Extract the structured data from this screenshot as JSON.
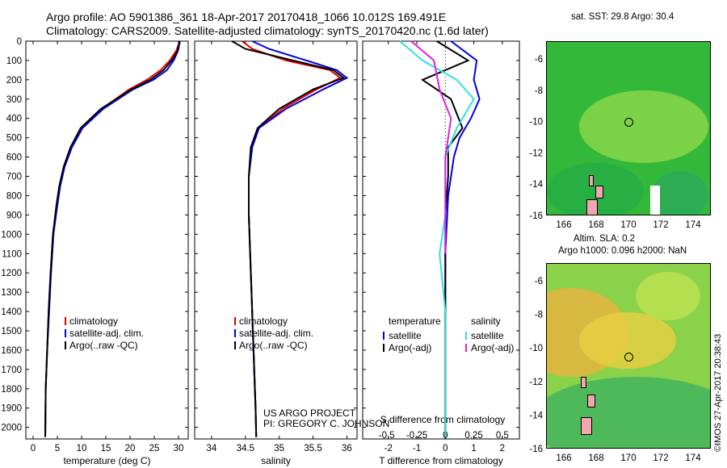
{
  "header": {
    "line1": "Argo profile: AO 5901386_361 18-Apr-2017 20170418_1066 10.012S 169.491E",
    "line2": "Climatology: CARS2009. Satellite-adjusted climatology: synTS_20170420.nc (1.6d later)"
  },
  "chart_data": [
    {
      "type": "line",
      "title": "",
      "xlabel": "temperature (deg C)",
      "ylabel": "",
      "xlim": [
        -1.5,
        32
      ],
      "ylim": [
        2060,
        0
      ],
      "xticks": [
        "0",
        "5",
        "10",
        "15",
        "20",
        "25",
        "30"
      ],
      "yticks": [
        "0",
        "100",
        "200",
        "300",
        "400",
        "500",
        "600",
        "700",
        "800",
        "900",
        "1000",
        "1100",
        "1200",
        "1300",
        "1400",
        "1500",
        "1600",
        "1700",
        "1800",
        "1900",
        "2000"
      ],
      "legend": [
        "climatology",
        "satellite-adj. clim.",
        "Argo(..raw -QC)"
      ],
      "series": [
        {
          "name": "climatology",
          "color": "#e00000",
          "x": [
            30.3,
            29.5,
            28.2,
            26.3,
            23.5,
            19.8,
            14.2,
            10.0,
            7.9,
            6.4,
            5.5,
            4.9,
            4.1,
            3.6,
            3.2,
            2.9,
            2.6,
            2.5
          ],
          "depth": [
            0,
            50,
            100,
            150,
            200,
            250,
            350,
            450,
            550,
            650,
            750,
            850,
            1000,
            1200,
            1400,
            1600,
            1800,
            2050
          ]
        },
        {
          "name": "satellite-adj. clim.",
          "color": "#0000e0",
          "x": [
            30.3,
            29.9,
            29.0,
            27.6,
            24.8,
            20.6,
            14.5,
            10.2,
            8.0,
            6.5,
            5.6,
            5.0,
            4.2,
            3.7,
            3.3,
            2.9,
            2.6,
            2.5
          ],
          "depth": [
            0,
            50,
            100,
            150,
            200,
            250,
            350,
            450,
            550,
            650,
            750,
            850,
            1000,
            1200,
            1400,
            1600,
            1800,
            2050
          ]
        },
        {
          "name": "Argo(..raw -QC)",
          "color": "#000000",
          "x": [
            30.2,
            29.8,
            28.6,
            26.9,
            24.2,
            20.3,
            14.0,
            9.8,
            7.7,
            6.3,
            5.4,
            4.8,
            4.1,
            3.6,
            3.2,
            2.9,
            2.6,
            2.5
          ],
          "depth": [
            0,
            50,
            100,
            150,
            200,
            250,
            350,
            450,
            550,
            650,
            750,
            850,
            1000,
            1200,
            1400,
            1600,
            1800,
            2050
          ]
        }
      ]
    },
    {
      "type": "line",
      "title": "",
      "xlabel": "salinity",
      "ylabel": "",
      "xlim": [
        33.75,
        36.15
      ],
      "ylim": [
        2060,
        0
      ],
      "xticks": [
        "34",
        "34.5",
        "35",
        "35.5",
        "36"
      ],
      "legend": [
        "climatology",
        "satellite-adj. clim.",
        "Argo(..raw -QC)"
      ],
      "annotation": [
        "US ARGO PROJECT",
        "PI: GREGORY C. JOHNSON"
      ],
      "series": [
        {
          "name": "climatology",
          "color": "#e00000",
          "x": [
            34.45,
            34.6,
            35.1,
            35.75,
            35.9,
            35.55,
            35.05,
            34.7,
            34.6,
            34.55,
            34.55,
            34.57,
            34.6,
            34.63,
            34.65,
            34.66
          ],
          "depth": [
            0,
            40,
            100,
            150,
            190,
            250,
            350,
            450,
            550,
            700,
            900,
            1100,
            1400,
            1700,
            1900,
            2050
          ]
        },
        {
          "name": "satellite-adj. clim.",
          "color": "#0000e0",
          "x": [
            34.6,
            34.85,
            35.4,
            35.85,
            36.0,
            35.65,
            35.1,
            34.7,
            34.6,
            34.55,
            34.55,
            34.57,
            34.6,
            34.63,
            34.65,
            34.66
          ],
          "depth": [
            0,
            40,
            100,
            150,
            190,
            250,
            350,
            450,
            550,
            700,
            900,
            1100,
            1400,
            1700,
            1900,
            2050
          ]
        },
        {
          "name": "Argo(..raw -QC)",
          "color": "#000000",
          "x": [
            34.3,
            34.5,
            35.2,
            35.8,
            35.95,
            35.5,
            35.0,
            34.68,
            34.58,
            34.55,
            34.55,
            34.57,
            34.6,
            34.63,
            34.65,
            34.66
          ],
          "depth": [
            0,
            40,
            100,
            150,
            190,
            250,
            350,
            450,
            550,
            700,
            900,
            1100,
            1400,
            1700,
            1900,
            2050
          ]
        }
      ]
    },
    {
      "type": "line",
      "title": "",
      "xlabel": "T difference from climatology",
      "xlabel_top": "S difference from climatology",
      "ylabel": "",
      "xlim": [
        -2.9,
        2.6
      ],
      "ylim": [
        2060,
        0
      ],
      "xticks_T": [
        "-2",
        "-1",
        "0",
        "1",
        "2"
      ],
      "xticks_S": [
        "-0.5",
        "-0.25",
        "0",
        "0.25",
        "0.5"
      ],
      "legend": {
        "temperature_heading": "temperature",
        "salinity_heading": "salinity",
        "items": [
          "satellite",
          "Argo(-adj)",
          "satellite",
          "Argo(-adj)"
        ]
      },
      "series": [
        {
          "name": "temperature satellite",
          "color": "#0000e0",
          "x": [
            0.2,
            1.1,
            1.0,
            1.2,
            0.9,
            0.5,
            0.3,
            0.1,
            0.0,
            0.0,
            0.0
          ],
          "depth": [
            0,
            100,
            200,
            300,
            400,
            500,
            600,
            800,
            1100,
            1500,
            2050
          ]
        },
        {
          "name": "temperature Argo(-adj)",
          "color": "#000000",
          "x": [
            -0.3,
            0.8,
            -0.8,
            0.2,
            0.6,
            0.1,
            0.1,
            0.0,
            0.0,
            0.0
          ],
          "depth": [
            0,
            100,
            200,
            300,
            450,
            550,
            700,
            900,
            1200,
            2050
          ]
        },
        {
          "name": "salinity satellite",
          "color": "#30e0e0",
          "x": [
            -0.4,
            -0.2,
            0.1,
            0.25,
            0.1,
            0.0,
            0.0,
            -0.05,
            0.0,
            0.0
          ],
          "depth": [
            0,
            100,
            200,
            300,
            450,
            600,
            900,
            1100,
            1400,
            2050
          ]
        },
        {
          "name": "salinity Argo(-adj)",
          "color": "#e020e0",
          "x": [
            -0.3,
            -0.1,
            -0.05,
            0.05,
            0.0,
            0.0,
            0.0
          ],
          "depth": [
            0,
            100,
            250,
            400,
            600,
            900,
            1100
          ]
        }
      ]
    }
  ],
  "map_sst": {
    "label": "sat. SST: 29.8 Argo: 30.4",
    "xticks": [
      "166",
      "168",
      "170",
      "172",
      "174"
    ],
    "yticks": [
      "-6",
      "-8",
      "-10",
      "-12",
      "-14",
      "-16"
    ]
  },
  "map_sla": {
    "label_line1": "Altim. SLA: 0.2",
    "label_line2": "Argo h1000: 0.096 h2000: NaN",
    "xticks": [
      "166",
      "168",
      "170",
      "172",
      "174"
    ],
    "yticks": [
      "-6",
      "-8",
      "-10",
      "-12",
      "-14",
      "-16"
    ]
  },
  "footer": {
    "watermark": "©IMOS 27-Apr-2017 20:38:43"
  }
}
